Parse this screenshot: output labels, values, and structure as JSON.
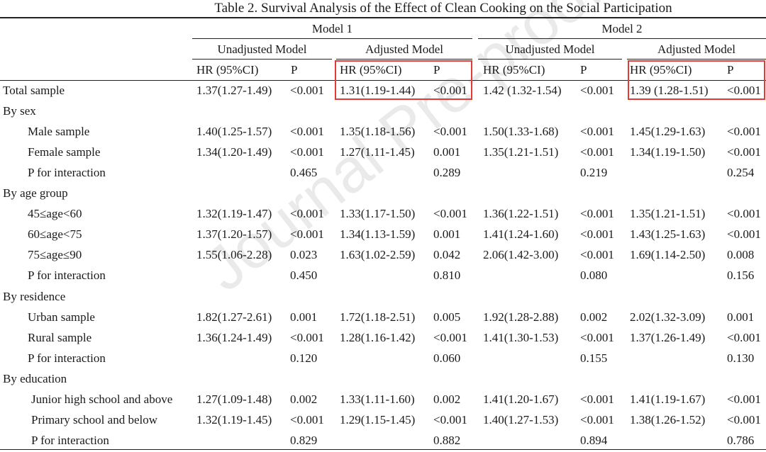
{
  "title": "Table 2. Survival Analysis of the Effect of Clean Cooking on the Social Participation",
  "watermark": "Journal Pre-proof",
  "models": [
    "Model 1",
    "Model 2"
  ],
  "subheaders": [
    "Unadjusted Model",
    "Adjusted Model",
    "Unadjusted Model",
    "Adjusted Model"
  ],
  "col_labels": [
    "HR (95%CI)",
    "P",
    "HR (95%CI)",
    "P",
    "HR (95%CI)",
    "P",
    "HR (95%CI)",
    "P"
  ],
  "highlight_color": "#e53935",
  "rows": [
    {
      "label": "Total sample",
      "indent": 0,
      "values": [
        "1.37(1.27-1.49)",
        "<0.001",
        "1.31(1.19-1.44)",
        "<0.001",
        "1.42 (1.32-1.54)",
        "<0.001",
        "1.39 (1.28-1.51)",
        "<0.001"
      ]
    },
    {
      "label": "By sex",
      "indent": 0,
      "values": [
        "",
        "",
        "",
        "",
        "",
        "",
        "",
        ""
      ]
    },
    {
      "label": "Male sample",
      "indent": 1,
      "values": [
        "1.40(1.25-1.57)",
        "<0.001",
        "1.35(1.18-1.56)",
        "<0.001",
        "1.50(1.33-1.68)",
        "<0.001",
        "1.45(1.29-1.63)",
        "<0.001"
      ]
    },
    {
      "label": "Female sample",
      "indent": 1,
      "values": [
        "1.34(1.20-1.49)",
        "<0.001",
        "1.27(1.11-1.45)",
        "0.001",
        "1.35(1.21-1.51)",
        "<0.001",
        "1.34(1.19-1.50)",
        "<0.001"
      ]
    },
    {
      "label": "P for interaction",
      "indent": 1,
      "values": [
        "",
        "0.465",
        "",
        "0.289",
        "",
        "0.219",
        "",
        "0.254"
      ]
    },
    {
      "label": "By age group",
      "indent": 0,
      "values": [
        "",
        "",
        "",
        "",
        "",
        "",
        "",
        ""
      ]
    },
    {
      "label": "45≤age<60",
      "indent": 1,
      "values": [
        "1.32(1.19-1.47)",
        "<0.001",
        "1.33(1.17-1.50)",
        "<0.001",
        "1.36(1.22-1.51)",
        "<0.001",
        "1.35(1.21-1.51)",
        "<0.001"
      ]
    },
    {
      "label": "60≤age<75",
      "indent": 1,
      "values": [
        "1.37(1.20-1.57)",
        "<0.001",
        "1.34(1.13-1.59)",
        "0.001",
        "1.41(1.24-1.60)",
        "<0.001",
        "1.43(1.25-1.63)",
        "<0.001"
      ]
    },
    {
      "label": "75≤age≤90",
      "indent": 1,
      "values": [
        "1.55(1.06-2.28)",
        "0.023",
        "1.63(1.02-2.59)",
        "0.042",
        "2.06(1.42-3.00)",
        "<0.001",
        "1.69(1.14-2.50)",
        "0.008"
      ]
    },
    {
      "label": "P for interaction",
      "indent": 1,
      "values": [
        "",
        "0.450",
        "",
        "0.810",
        "",
        "0.080",
        "",
        "0.156"
      ]
    },
    {
      "label": "By residence",
      "indent": 0,
      "values": [
        "",
        "",
        "",
        "",
        "",
        "",
        "",
        ""
      ]
    },
    {
      "label": "Urban sample",
      "indent": 1,
      "values": [
        "1.82(1.27-2.61)",
        "0.001",
        "1.72(1.18-2.51)",
        "0.005",
        "1.92(1.28-2.88)",
        "0.002",
        "2.02(1.32-3.09)",
        "0.001"
      ]
    },
    {
      "label": "Rural sample",
      "indent": 1,
      "values": [
        "1.36(1.24-1.49)",
        "<0.001",
        "1.28(1.16-1.42)",
        "<0.001",
        "1.41(1.30-1.53)",
        "<0.001",
        "1.37(1.26-1.49)",
        "<0.001"
      ]
    },
    {
      "label": "P for interaction",
      "indent": 1,
      "values": [
        "",
        "0.120",
        "",
        "0.060",
        "",
        "0.155",
        "",
        "0.130"
      ]
    },
    {
      "label": "By education",
      "indent": 0,
      "values": [
        "",
        "",
        "",
        "",
        "",
        "",
        "",
        ""
      ]
    },
    {
      "label": "Junior high school and above",
      "indent": 2,
      "values": [
        "1.27(1.09-1.48)",
        "0.002",
        "1.33(1.11-1.60)",
        "0.002",
        "1.41(1.20-1.67)",
        "<0.001",
        "1.41(1.19-1.67)",
        "<0.001"
      ]
    },
    {
      "label": "Primary school and below",
      "indent": 2,
      "values": [
        "1.32(1.19-1.45)",
        "<0.001",
        "1.29(1.15-1.45)",
        "<0.001",
        "1.40(1.27-1.53)",
        "<0.001",
        "1.38(1.26-1.52)",
        "<0.001"
      ]
    },
    {
      "label": "P for interaction",
      "indent": 2,
      "values": [
        "",
        "0.829",
        "",
        "0.882",
        "",
        "0.894",
        "",
        "0.786"
      ]
    }
  ]
}
